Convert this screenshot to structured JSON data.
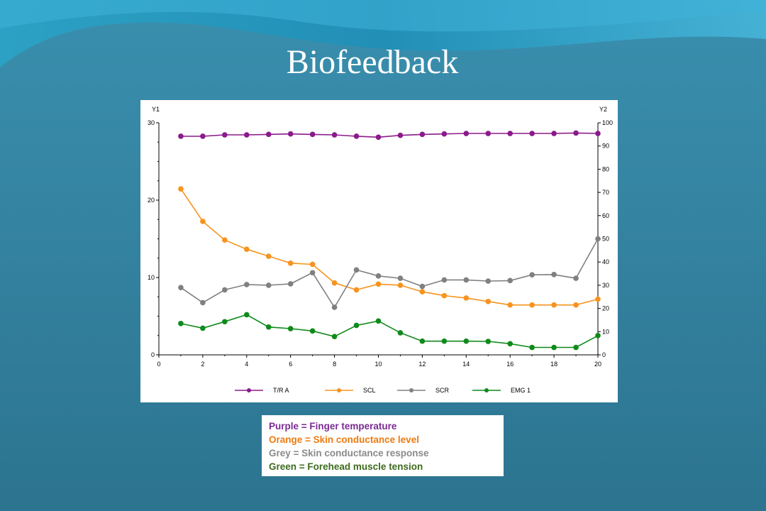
{
  "slide": {
    "title": "Biofeedback"
  },
  "colors": {
    "background": "#2f7a96",
    "purple": "#8b1a8b",
    "orange": "#f7931e",
    "grey": "#808080",
    "green": "#0e8a1a"
  },
  "chart_data": {
    "type": "line",
    "x_label_left": "",
    "y1_label": "Y1",
    "y2_label": "Y2",
    "xlim": [
      0,
      20
    ],
    "y1lim": [
      0,
      30
    ],
    "y2lim": [
      0,
      100
    ],
    "x_ticks": [
      0,
      2,
      4,
      6,
      8,
      10,
      12,
      14,
      16,
      18,
      20
    ],
    "y1_ticks": [
      0,
      10,
      20,
      30
    ],
    "y2_ticks": [
      0,
      10,
      20,
      30,
      40,
      50,
      60,
      70,
      80,
      90,
      100
    ],
    "grid": false,
    "legend_position": "bottom",
    "x": [
      1,
      2,
      3,
      4,
      5,
      6,
      7,
      8,
      9,
      10,
      11,
      12,
      13,
      14,
      15,
      16,
      17,
      18,
      19,
      20
    ],
    "series": [
      {
        "name": "T/R A",
        "axis": "y2",
        "color": "#8b1a8b",
        "values": [
          94.2,
          94.2,
          94.8,
          94.8,
          95.0,
          95.2,
          95.0,
          94.8,
          94.2,
          93.8,
          94.6,
          95.0,
          95.2,
          95.4,
          95.4,
          95.4,
          95.4,
          95.4,
          95.6,
          95.4
        ]
      },
      {
        "name": "SCL",
        "axis": "y2",
        "color": "#f7931e",
        "values": [
          71.5,
          57.5,
          49.5,
          45.5,
          42.5,
          39.5,
          39.0,
          31.0,
          28.0,
          30.5,
          30.0,
          27.2,
          25.5,
          24.5,
          23.0,
          21.5,
          21.5,
          21.5,
          21.5,
          24.0
        ]
      },
      {
        "name": "SCR",
        "axis": "y2",
        "color": "#808080",
        "values": [
          29.0,
          22.5,
          28.0,
          30.3,
          30.0,
          30.6,
          35.4,
          20.5,
          36.6,
          34.0,
          33.0,
          29.5,
          32.3,
          32.3,
          31.8,
          32.0,
          34.5,
          34.6,
          33.0,
          50.0
        ]
      },
      {
        "name": "EMG 1",
        "axis": "y2",
        "color": "#0e8a1a",
        "values": [
          13.5,
          11.5,
          14.3,
          17.3,
          12.0,
          11.3,
          10.3,
          7.9,
          12.7,
          14.6,
          9.5,
          5.9,
          5.9,
          5.9,
          5.8,
          4.8,
          3.2,
          3.2,
          3.2,
          8.3
        ]
      }
    ]
  },
  "legend_note": {
    "purple": "Purple = Finger temperature",
    "orange": "Orange = Skin conductance level",
    "grey": "Grey = Skin conductance response",
    "green": "Green = Forehead muscle tension"
  }
}
